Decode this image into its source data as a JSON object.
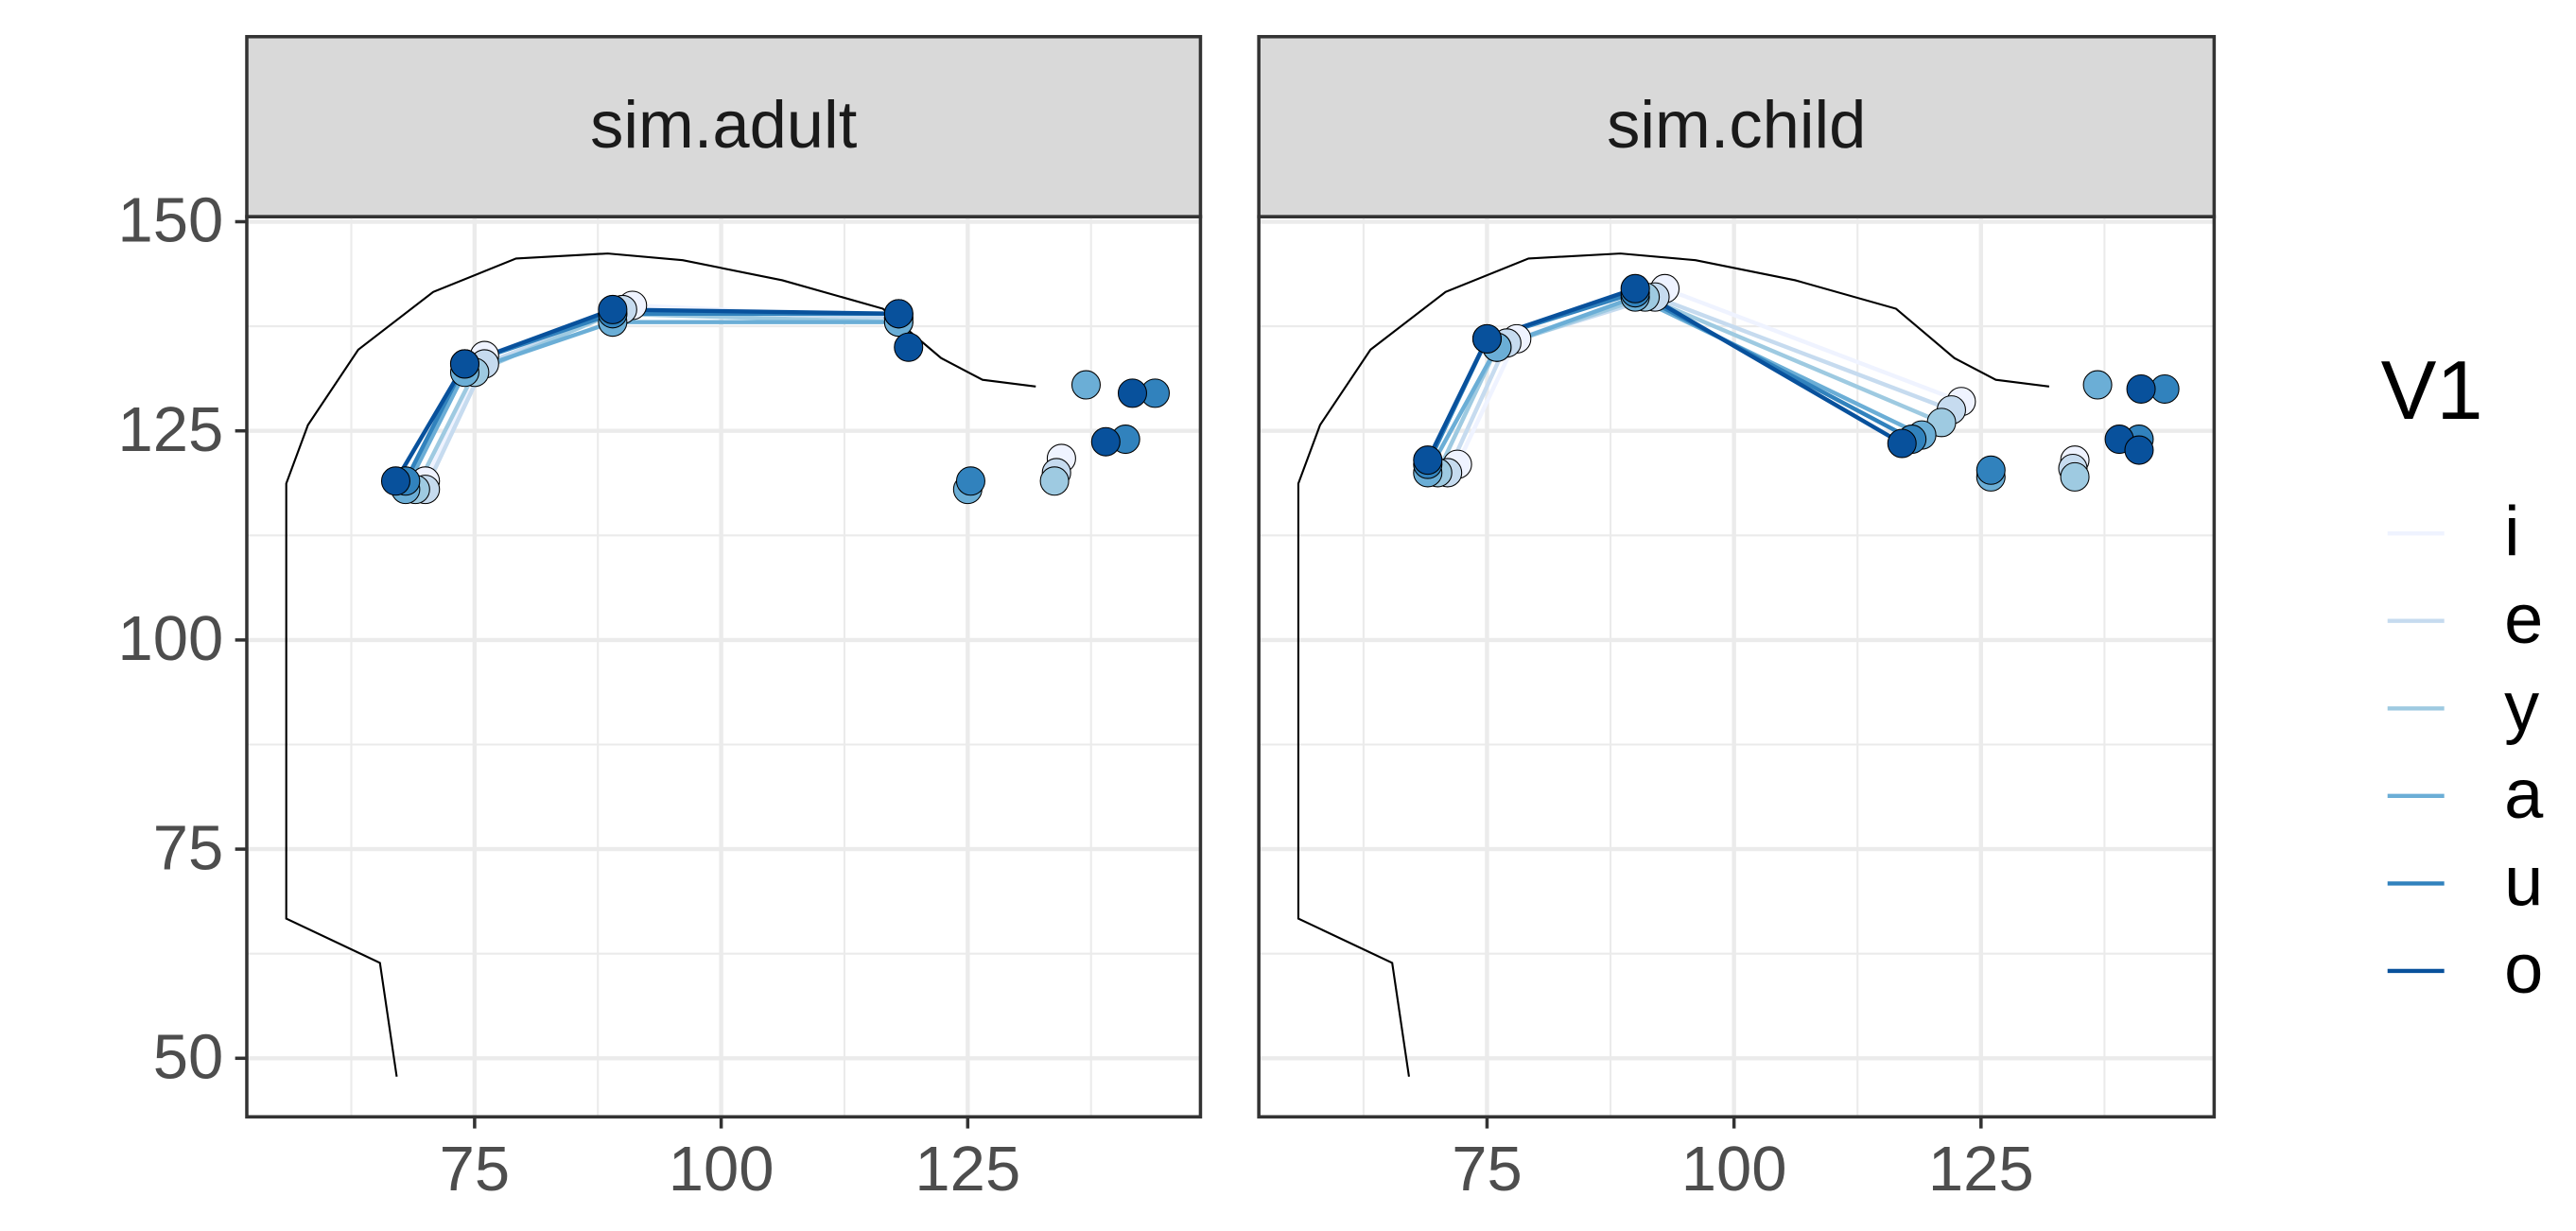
{
  "chart_data": [
    {
      "type": "line",
      "title": "sim.adult",
      "legend_title": "V1",
      "xlim": [
        51.9,
        148.6
      ],
      "ylim": [
        43,
        150.6
      ],
      "xticks": [
        75,
        100,
        125
      ],
      "yticks": [
        50,
        75,
        100,
        125,
        150
      ],
      "x_minor": [
        62.5,
        87.5,
        112.5,
        137.5
      ],
      "y_minor": [
        62.5,
        87.5,
        112.5,
        137.5
      ],
      "grid": true,
      "outline": {
        "color": "#000000",
        "x": [
          67.1,
          65.4,
          55.9,
          55.9,
          58.1,
          63.2,
          70.8,
          79.2,
          88.5,
          96.1,
          106.2,
          116.4,
          122.3,
          126.5,
          131.9
        ],
        "values": [
          47.8,
          61.4,
          66.7,
          118.7,
          125.7,
          134.7,
          141.6,
          145.6,
          146.2,
          145.4,
          143,
          139.6,
          133.7,
          131.1,
          130.3
        ]
      },
      "series": [
        {
          "name": "i",
          "color": "#eff3ff",
          "x": [
            70,
            76,
            91,
            118
          ],
          "values": [
            119,
            134,
            140,
            138.5
          ],
          "point_x": [
            134.5
          ],
          "point_values": [
            121.7
          ]
        },
        {
          "name": "e",
          "color": "#c6dbef",
          "x": [
            70,
            76,
            90,
            118
          ],
          "values": [
            118,
            133,
            139.5,
            138.5
          ],
          "point_x": [
            134
          ],
          "point_values": [
            120
          ]
        },
        {
          "name": "y",
          "color": "#9ecae1",
          "x": [
            69,
            75,
            89,
            118
          ],
          "values": [
            118,
            132,
            139,
            138
          ],
          "point_x": [
            133.8
          ],
          "point_values": [
            119
          ]
        },
        {
          "name": "a",
          "color": "#6baed6",
          "x": [
            68,
            74,
            89,
            118
          ],
          "values": [
            118,
            132,
            138,
            138
          ],
          "point_x": [
            137,
            125
          ],
          "point_values": [
            130.5,
            118
          ]
        },
        {
          "name": "u",
          "color": "#3182bd",
          "x": [
            68,
            74,
            89,
            118
          ],
          "values": [
            119,
            133,
            139,
            139
          ],
          "point_x": [
            141,
            144,
            125.3
          ],
          "point_values": [
            124,
            129.5,
            119
          ]
        },
        {
          "name": "o",
          "color": "#08519c",
          "x": [
            67,
            74,
            89,
            118
          ],
          "values": [
            119,
            133,
            139.5,
            139
          ],
          "point_x": [
            119,
            139,
            141.7
          ],
          "point_values": [
            135,
            123.7,
            129.5
          ]
        }
      ]
    },
    {
      "type": "line",
      "title": "sim.child",
      "xlim": [
        51.9,
        148.6
      ],
      "ylim": [
        43,
        150.6
      ],
      "xticks": [
        75,
        100,
        125
      ],
      "yticks": [
        50,
        75,
        100,
        125,
        150
      ],
      "x_minor": [
        62.5,
        87.5,
        112.5,
        137.5
      ],
      "y_minor": [
        62.5,
        87.5,
        112.5,
        137.5
      ],
      "grid": true,
      "outline": {
        "color": "#000000",
        "x": [
          67.1,
          65.4,
          55.9,
          55.9,
          58.1,
          63.2,
          70.8,
          79.2,
          88.5,
          96.1,
          106.2,
          116.4,
          122.3,
          126.5,
          131.9
        ],
        "values": [
          47.8,
          61.4,
          66.7,
          118.7,
          125.7,
          134.7,
          141.6,
          145.6,
          146.2,
          145.4,
          143,
          139.6,
          133.7,
          131.1,
          130.3
        ]
      },
      "series": [
        {
          "name": "i",
          "color": "#eff3ff",
          "x": [
            72,
            78,
            93,
            123
          ],
          "values": [
            121,
            136,
            142,
            128.5
          ],
          "point_x": [
            134.5
          ],
          "point_values": [
            121.5
          ]
        },
        {
          "name": "e",
          "color": "#c6dbef",
          "x": [
            71,
            77,
            92,
            122
          ],
          "values": [
            120,
            135.5,
            141,
            127.5
          ],
          "point_x": [
            134.3
          ],
          "point_values": [
            120.5
          ]
        },
        {
          "name": "y",
          "color": "#9ecae1",
          "x": [
            70,
            76,
            91,
            121
          ],
          "values": [
            120,
            135,
            141,
            126
          ],
          "point_x": [
            134.5
          ],
          "point_values": [
            119.5
          ]
        },
        {
          "name": "a",
          "color": "#6baed6",
          "x": [
            69,
            76,
            90,
            119
          ],
          "values": [
            120,
            135,
            141,
            124.5
          ],
          "point_x": [
            136.8,
            126
          ],
          "point_values": [
            130.5,
            119.5
          ]
        },
        {
          "name": "u",
          "color": "#3182bd",
          "x": [
            69,
            75,
            90,
            118
          ],
          "values": [
            121,
            136,
            141.5,
            124
          ],
          "point_x": [
            141,
            143.6,
            126
          ],
          "point_values": [
            124,
            130,
            120.3
          ]
        },
        {
          "name": "o",
          "color": "#08519c",
          "x": [
            69,
            75,
            90,
            117
          ],
          "values": [
            121.5,
            136,
            142,
            123.5
          ],
          "point_x": [
            139,
            141.2,
            141
          ],
          "point_values": [
            124,
            130,
            122.7
          ]
        }
      ]
    }
  ]
}
